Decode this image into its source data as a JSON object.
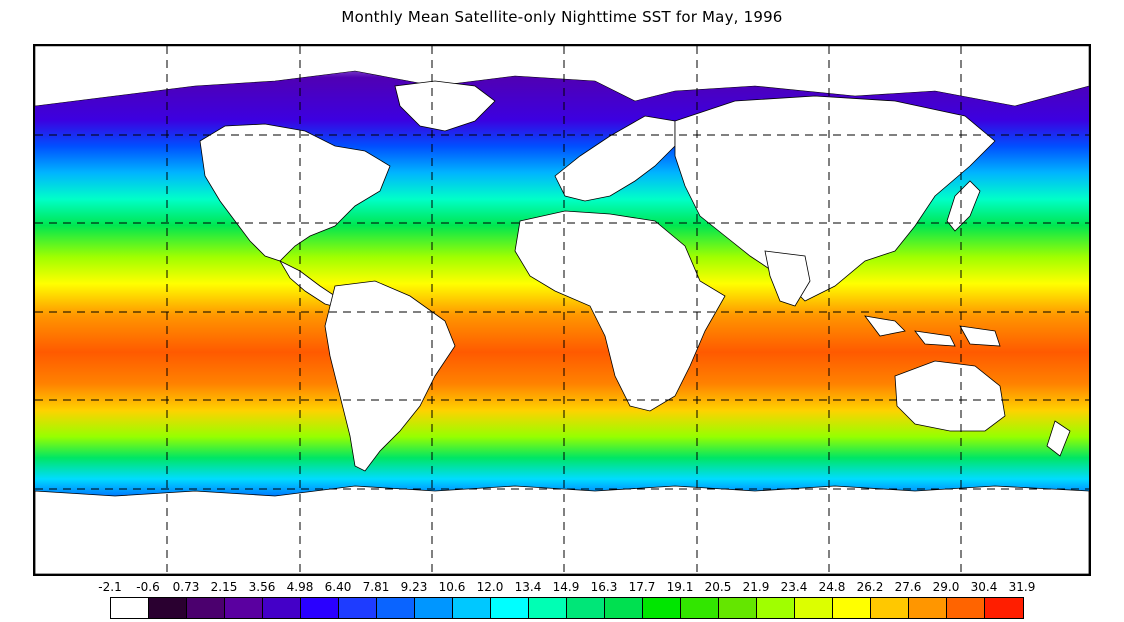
{
  "title": "Monthly Mean Satellite-only Nighttime SST for May, 1996",
  "legend": {
    "labels": [
      "-2.1",
      "-0.6",
      "0.73",
      "2.15",
      "3.56",
      "4.98",
      "6.40",
      "7.81",
      "9.23",
      "10.6",
      "12.0",
      "13.4",
      "14.9",
      "16.3",
      "17.7",
      "19.1",
      "20.5",
      "21.9",
      "23.4",
      "24.8",
      "26.2",
      "27.6",
      "29.0",
      "30.4",
      "31.9"
    ],
    "colors": [
      "#ffffff",
      "#2a0030",
      "#4b006e",
      "#5a00a0",
      "#4400c8",
      "#2a00ff",
      "#1e3cff",
      "#0a64ff",
      "#0096ff",
      "#00c8ff",
      "#00ffff",
      "#00ffb4",
      "#00e678",
      "#00e050",
      "#00e600",
      "#32e600",
      "#64e600",
      "#a0ff00",
      "#dcff00",
      "#ffff00",
      "#ffc800",
      "#ff9600",
      "#ff6400",
      "#ff1e00"
    ]
  },
  "map": {
    "gridlines": "dashed",
    "land_color": "#ffffff",
    "coastline_color": "#000000"
  }
}
